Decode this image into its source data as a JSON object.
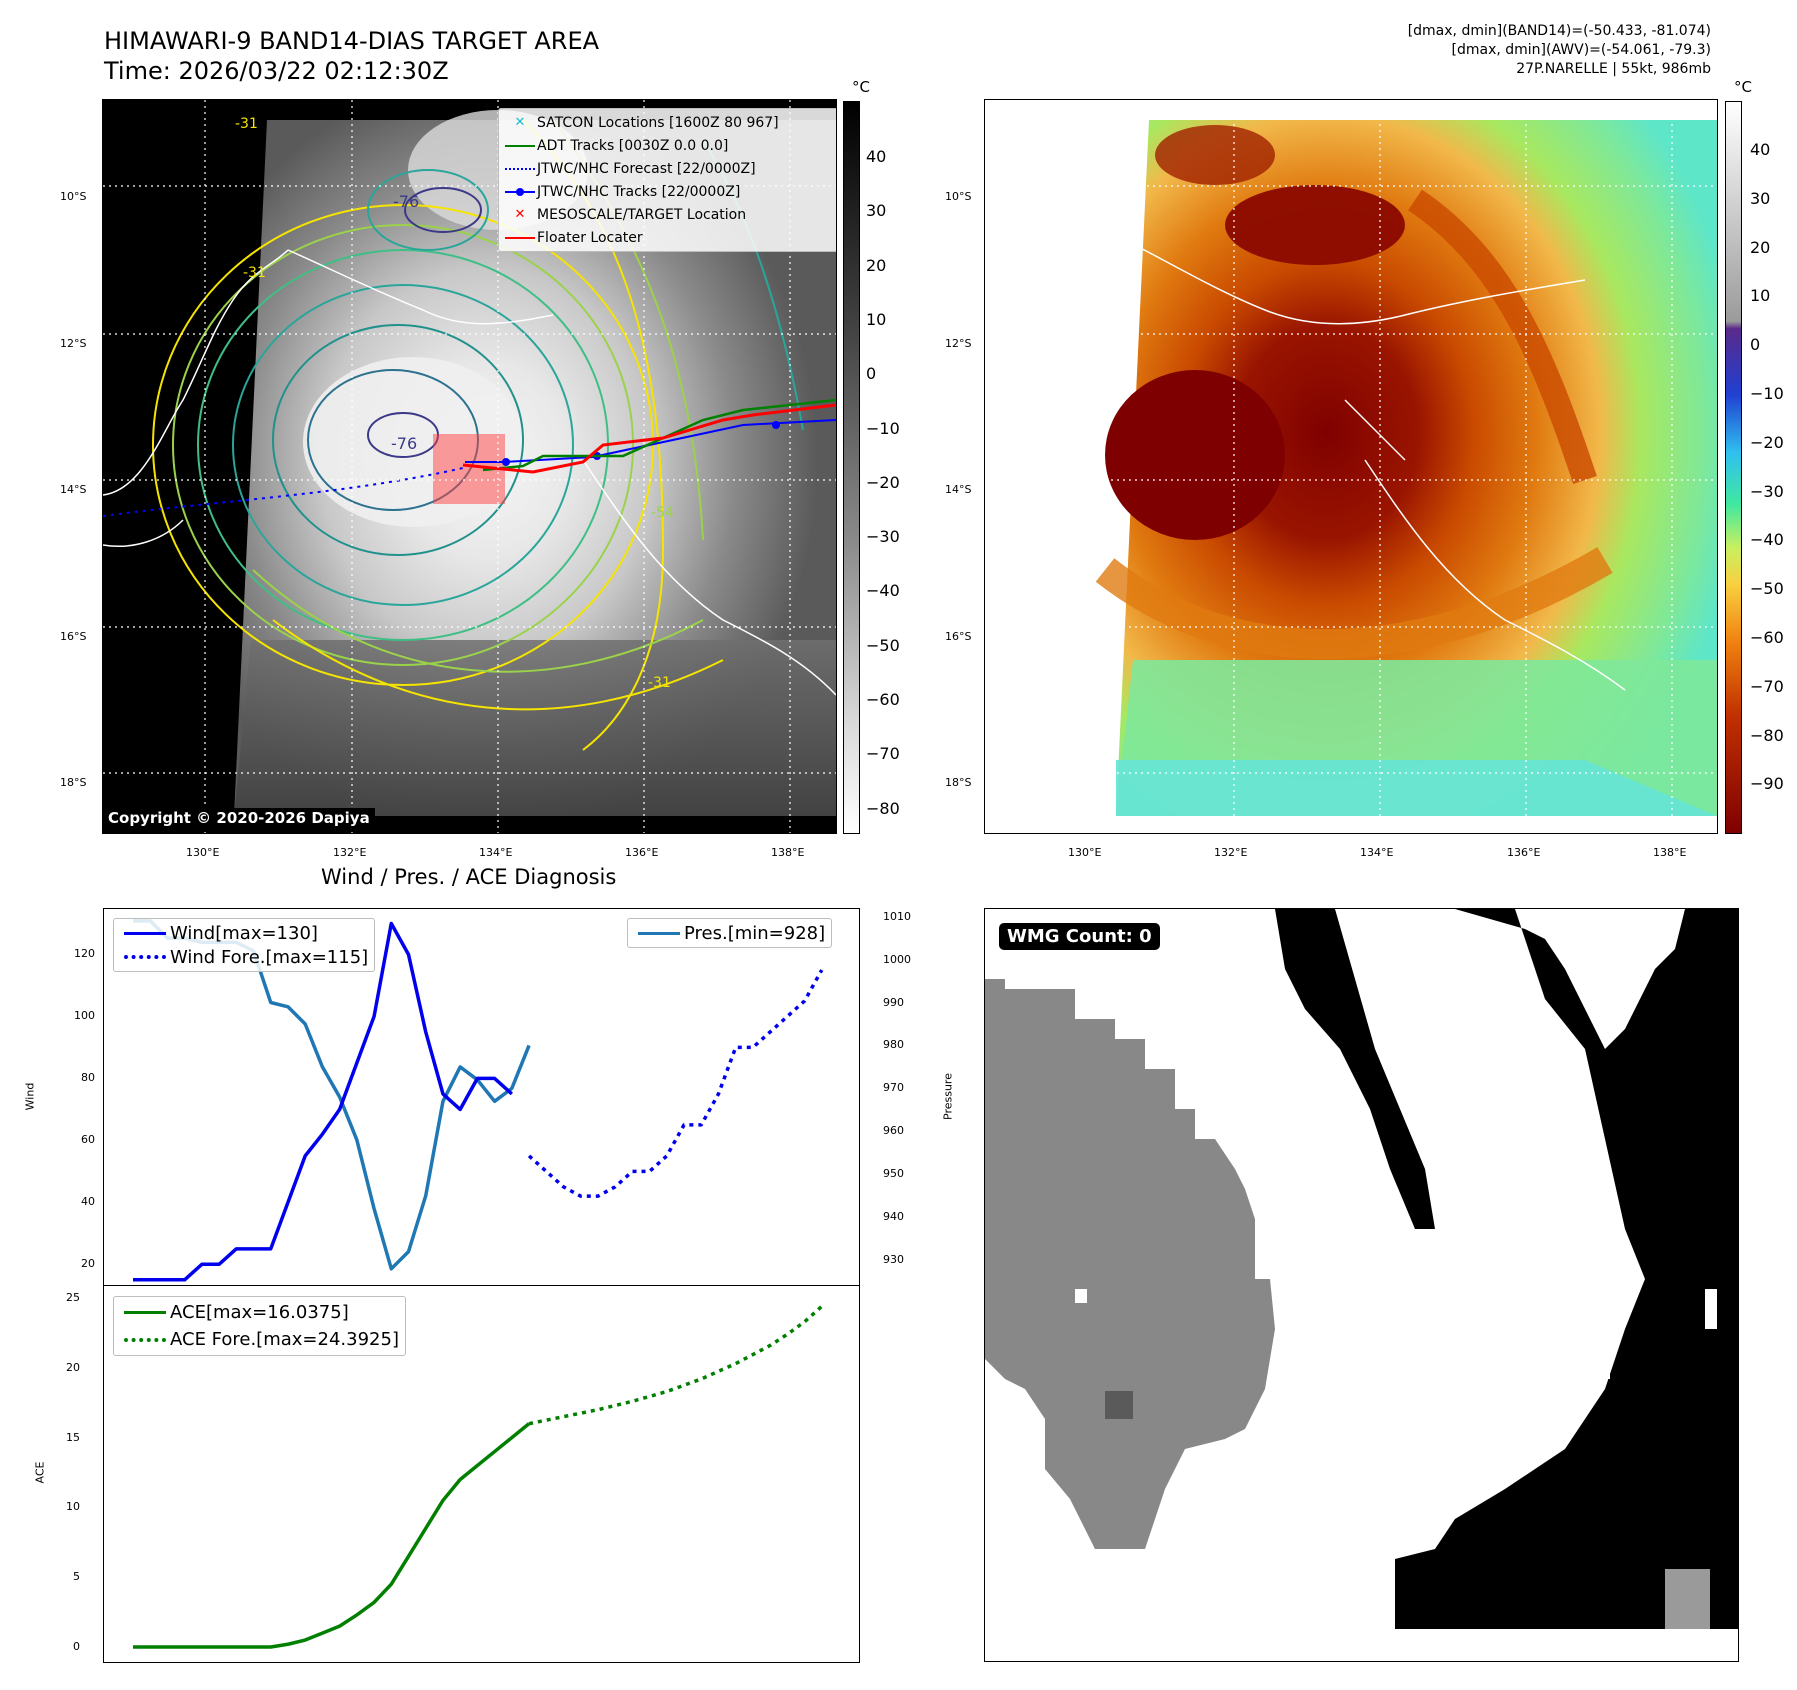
{
  "header": {
    "title_line1": "HIMAWARI-9 BAND14-DIAS TARGET AREA",
    "title_line2": "Time: 2026/03/22 02:12:30Z",
    "right_line1": "[dmax, dmin](BAND14)=(-50.433, -81.074)",
    "right_line2": "[dmax, dmin](AWV)=(-54.061, -79.3)",
    "right_line3": "27P.NARELLE | 55kt, 986mb"
  },
  "map": {
    "lat_labels": [
      "10°S",
      "12°S",
      "14°S",
      "16°S",
      "18°S"
    ],
    "lon_labels": [
      "130°E",
      "132°E",
      "134°E",
      "136°E",
      "138°E"
    ],
    "copyright": "Copyright © 2020-2026 Dapiya",
    "contour_labels": [
      "-76",
      "-76",
      "-31",
      "-31",
      "-54",
      "-31"
    ]
  },
  "colorbar_gray": {
    "unit": "°C",
    "ticks": [
      "40",
      "30",
      "20",
      "10",
      "0",
      "−10",
      "−20",
      "−30",
      "−40",
      "−50",
      "−60",
      "−70",
      "−80"
    ]
  },
  "colorbar_color": {
    "unit": "°C",
    "ticks": [
      "40",
      "30",
      "20",
      "10",
      "0",
      "−10",
      "−20",
      "−30",
      "−40",
      "−50",
      "−60",
      "−70",
      "−80",
      "−90"
    ]
  },
  "legend_map": [
    {
      "label": "SATCON Locations [1600Z 80 967]",
      "symbol": "x",
      "color": "#17becf"
    },
    {
      "label": "ADT Tracks [0030Z 0.0 0.0]",
      "symbol": "line",
      "color": "#008000"
    },
    {
      "label": "JTWC/NHC Forecast [22/0000Z]",
      "symbol": "dotted",
      "color": "#0000ff"
    },
    {
      "label": "JTWC/NHC Tracks [22/0000Z]",
      "symbol": "line-dot",
      "color": "#0000ff"
    },
    {
      "label": "MESOSCALE/TARGET Location",
      "symbol": "x",
      "color": "#ff0000"
    },
    {
      "label": "Floater Locater",
      "symbol": "line",
      "color": "#ff0000"
    }
  ],
  "wmg": {
    "label": "WMG Count: 0"
  },
  "chart_data": [
    {
      "type": "line",
      "title": "Wind / Pres. / ACE Diagnosis",
      "ylabel": "Wind",
      "ylabel_right": "Pressure",
      "ylim": [
        13,
        135
      ],
      "ylim_right": [
        924,
        1012
      ],
      "yticks": [
        "120",
        "100",
        "80",
        "60",
        "40",
        "20"
      ],
      "yticks_right": [
        "1010",
        "1000",
        "990",
        "980",
        "970",
        "960",
        "950",
        "940",
        "930"
      ],
      "legend_left": [
        "Wind[max=130]",
        "Wind Fore.[max=115]"
      ],
      "legend_right": [
        "Pres.[min=928]"
      ],
      "series": [
        {
          "name": "Wind[max=130]",
          "color": "#0000ee",
          "style": "solid",
          "x": [
            0,
            1,
            2,
            3,
            4,
            5,
            6,
            7,
            8,
            9,
            10,
            11,
            12,
            13,
            14,
            15,
            16,
            17,
            18,
            19,
            20,
            21,
            22
          ],
          "values": [
            15,
            15,
            15,
            15,
            20,
            20,
            25,
            25,
            25,
            40,
            55,
            62,
            70,
            85,
            100,
            130,
            120,
            95,
            75,
            70,
            80,
            80,
            75
          ]
        },
        {
          "name": "Wind Fore.[max=115]",
          "color": "#0000ee",
          "style": "dotted",
          "x": [
            23,
            24,
            25,
            26,
            27,
            28,
            29,
            30,
            31,
            32,
            33,
            34,
            35,
            36,
            37,
            38,
            39,
            40
          ],
          "values": [
            55,
            50,
            45,
            42,
            42,
            45,
            50,
            50,
            55,
            65,
            65,
            75,
            90,
            90,
            95,
            100,
            105,
            115
          ]
        },
        {
          "name": "Pres.[min=928]",
          "color": "#1f77b4",
          "style": "solid",
          "x": [
            0,
            1,
            2,
            3,
            4,
            5,
            6,
            7,
            8,
            9,
            10,
            11,
            12,
            13,
            14,
            15,
            16,
            17,
            18,
            19,
            20,
            21,
            22,
            23
          ],
          "values": [
            1009,
            1009,
            1005,
            1005,
            1004,
            1004,
            1004,
            1002,
            990,
            989,
            985,
            975,
            968,
            958,
            942,
            928,
            932,
            945,
            967,
            975,
            972,
            967,
            970,
            980
          ]
        }
      ]
    },
    {
      "type": "line",
      "ylabel": "ACE",
      "ylim": [
        -1,
        25
      ],
      "yticks": [
        "25",
        "20",
        "15",
        "10",
        "5",
        "0"
      ],
      "legend": [
        "ACE[max=16.0375]",
        "ACE Fore.[max=24.3925]"
      ],
      "series": [
        {
          "name": "ACE[max=16.0375]",
          "color": "#007f00",
          "style": "solid",
          "x": [
            0,
            4,
            8,
            9,
            10,
            11,
            12,
            13,
            14,
            15,
            16,
            17,
            18,
            19,
            20,
            21,
            22,
            23
          ],
          "values": [
            0,
            0,
            0,
            0.2,
            0.5,
            1,
            1.5,
            2.3,
            3.2,
            4.5,
            6.5,
            8.5,
            10.5,
            12,
            13,
            14,
            15,
            16
          ]
        },
        {
          "name": "ACE Fore.[max=24.3925]",
          "color": "#007f00",
          "style": "dotted",
          "x": [
            23,
            25,
            27,
            29,
            31,
            33,
            35,
            37,
            38,
            39,
            40
          ],
          "values": [
            16,
            16.5,
            17,
            17.6,
            18.3,
            19.2,
            20.3,
            21.6,
            22.4,
            23.3,
            24.4
          ]
        }
      ]
    }
  ]
}
